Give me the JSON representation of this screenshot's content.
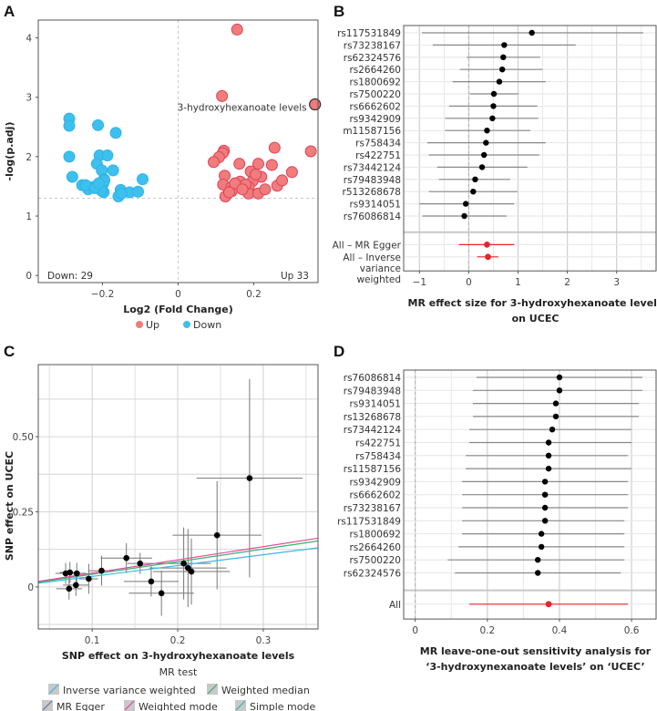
{
  "chart_data": [
    {
      "panel": "A",
      "type": "scatter",
      "title": "",
      "xlabel": "Log2 (Fold Change)",
      "ylabel": "-log(p.adj)",
      "xlim": [
        -0.37,
        0.37
      ],
      "ylim": [
        -0.12,
        4.3
      ],
      "xticks": [
        -0.2,
        0,
        0.2
      ],
      "xtick_labels": [
        "−0.2",
        "0",
        "0.2"
      ],
      "yticks": [
        0,
        1,
        2,
        3,
        4
      ],
      "threshold_y": 1.3,
      "threshold_x": 0,
      "grid": false,
      "legend": {
        "position": "bottom",
        "entries": [
          {
            "label": "Up",
            "color": "#f07c7c"
          },
          {
            "label": "Down",
            "color": "#3ec0ef"
          }
        ]
      },
      "annotations": {
        "down_count": "Down: 29",
        "up_count": "Up 33",
        "highlight_label": "3-hydroxyhexanoate levels"
      },
      "highlight_point": {
        "x": 0.362,
        "y": 2.88
      },
      "series": [
        {
          "name": "Down",
          "color": "#3ec0ef",
          "edge": "#2fb3e6",
          "points": [
            [
              -0.288,
              2.64
            ],
            [
              -0.288,
              2.52
            ],
            [
              -0.212,
              2.53
            ],
            [
              -0.165,
              2.4
            ],
            [
              -0.288,
              2.0
            ],
            [
              -0.208,
              2.02
            ],
            [
              -0.187,
              2.02
            ],
            [
              -0.215,
              1.88
            ],
            [
              -0.202,
              1.77
            ],
            [
              -0.172,
              1.77
            ],
            [
              -0.28,
              1.66
            ],
            [
              -0.196,
              1.62
            ],
            [
              -0.198,
              1.55
            ],
            [
              -0.254,
              1.52
            ],
            [
              -0.238,
              1.45
            ],
            [
              -0.224,
              1.49
            ],
            [
              -0.202,
              1.47
            ],
            [
              -0.197,
              1.4
            ],
            [
              -0.152,
              1.44
            ],
            [
              -0.128,
              1.4
            ],
            [
              -0.106,
              1.41
            ],
            [
              -0.094,
              1.62
            ],
            [
              -0.158,
              1.33
            ],
            [
              -0.203,
              1.43
            ],
            [
              -0.245,
              1.52
            ],
            [
              -0.22,
              1.47
            ],
            [
              -0.15,
              1.38
            ],
            [
              -0.195,
              1.6
            ],
            [
              -0.21,
              1.55
            ]
          ]
        },
        {
          "name": "Up",
          "color": "#f07c7c",
          "edge": "#e0405a",
          "points": [
            [
              0.156,
              4.14
            ],
            [
              0.116,
              3.02
            ],
            [
              0.362,
              2.88
            ],
            [
              0.121,
              2.1
            ],
            [
              0.118,
              2.06
            ],
            [
              0.108,
              1.99
            ],
            [
              0.094,
              1.91
            ],
            [
              0.255,
              2.15
            ],
            [
              0.351,
              2.09
            ],
            [
              0.162,
              1.88
            ],
            [
              0.212,
              1.88
            ],
            [
              0.248,
              1.86
            ],
            [
              0.192,
              1.75
            ],
            [
              0.301,
              1.74
            ],
            [
              0.22,
              1.66
            ],
            [
              0.123,
              1.68
            ],
            [
              0.164,
              1.58
            ],
            [
              0.197,
              1.59
            ],
            [
              0.119,
              1.53
            ],
            [
              0.141,
              1.49
            ],
            [
              0.142,
              1.42
            ],
            [
              0.262,
              1.51
            ],
            [
              0.187,
              1.49
            ],
            [
              0.125,
              1.33
            ],
            [
              0.186,
              1.38
            ],
            [
              0.212,
              1.38
            ],
            [
              0.178,
              1.53
            ],
            [
              0.205,
              1.7
            ],
            [
              0.15,
              1.55
            ],
            [
              0.23,
              1.45
            ],
            [
              0.17,
              1.45
            ],
            [
              0.135,
              1.4
            ],
            [
              0.275,
              1.6
            ]
          ]
        }
      ]
    },
    {
      "panel": "B",
      "type": "forest",
      "xlabel": "MR effect size for 3-hydroxyhexanoate levels on UCEC",
      "xlabel_lines": [
        "MR effect size for 3-hydroxyhexanoate levels",
        "on UCEC"
      ],
      "xlim": [
        -1.32,
        3.8
      ],
      "xticks": [
        -1,
        0,
        1,
        2,
        3
      ],
      "xtick_labels": [
        "−1",
        "0",
        "1",
        "2",
        "3"
      ],
      "grid": true,
      "snps": [
        {
          "label": "rs117531849",
          "effect": 1.28,
          "lo": -0.95,
          "hi": 3.54
        },
        {
          "label": "rs73238167",
          "effect": 0.72,
          "lo": -0.73,
          "hi": 2.17
        },
        {
          "label": "rs62324576",
          "effect": 0.7,
          "lo": -0.04,
          "hi": 1.45
        },
        {
          "label": "rs2664260",
          "effect": 0.68,
          "lo": -0.18,
          "hi": 1.5
        },
        {
          "label": "rs1800692",
          "effect": 0.62,
          "lo": -0.33,
          "hi": 1.56
        },
        {
          "label": "rs7500220",
          "effect": 0.51,
          "lo": 0.02,
          "hi": 1.01
        },
        {
          "label": "rs6662602",
          "effect": 0.5,
          "lo": -0.4,
          "hi": 1.39
        },
        {
          "label": "rs9342909",
          "effect": 0.48,
          "lo": -0.48,
          "hi": 1.41
        },
        {
          "label": "m11587156",
          "effect": 0.37,
          "lo": -0.48,
          "hi": 1.25
        },
        {
          "label": "rs758434",
          "effect": 0.35,
          "lo": -0.84,
          "hi": 1.56
        },
        {
          "label": "rs422751",
          "effect": 0.31,
          "lo": -0.81,
          "hi": 1.43
        },
        {
          "label": "rs73442124",
          "effect": 0.27,
          "lo": -0.64,
          "hi": 1.19
        },
        {
          "label": "rs79483948",
          "effect": 0.13,
          "lo": -0.61,
          "hi": 0.84
        },
        {
          "label": "r513268678",
          "effect": 0.09,
          "lo": -0.81,
          "hi": 0.99
        },
        {
          "label": "rs9314051",
          "effect": -0.06,
          "lo": -1.0,
          "hi": 0.92
        },
        {
          "label": "rs76086814",
          "effect": -0.09,
          "lo": -0.94,
          "hi": 0.77
        }
      ],
      "summary": [
        {
          "label_lines": [
            "All – MR Egger"
          ],
          "effect": 0.37,
          "lo": -0.2,
          "hi": 0.92
        },
        {
          "label_lines": [
            "All – Inverse",
            "variance",
            "weighted"
          ],
          "effect": 0.39,
          "lo": 0.17,
          "hi": 0.6
        }
      ]
    },
    {
      "panel": "C",
      "type": "scatter",
      "xlabel": "SNP effect on 3-hydroxyhexanoate levels",
      "ylabel": "SNP effect on UCEC",
      "xlim": [
        0.037,
        0.364
      ],
      "ylim": [
        -0.14,
        0.74
      ],
      "xticks": [
        0.1,
        0.2,
        0.3
      ],
      "xtick_labels": [
        "0.1",
        "0.2",
        "0.3"
      ],
      "yticks": [
        0,
        0.25,
        0.5
      ],
      "ytick_labels": [
        "0",
        "0.25",
        "0.50"
      ],
      "grid": true,
      "points": [
        {
          "x": 0.069,
          "y": 0.045,
          "xse": 0.012,
          "yse": 0.035
        },
        {
          "x": 0.074,
          "y": 0.048,
          "xse": 0.012,
          "yse": 0.035
        },
        {
          "x": 0.082,
          "y": 0.045,
          "xse": 0.011,
          "yse": 0.035
        },
        {
          "x": 0.073,
          "y": -0.006,
          "xse": 0.015,
          "yse": 0.036
        },
        {
          "x": 0.081,
          "y": 0.006,
          "xse": 0.015,
          "yse": 0.036
        },
        {
          "x": 0.096,
          "y": 0.027,
          "xse": 0.011,
          "yse": 0.05
        },
        {
          "x": 0.111,
          "y": 0.054,
          "xse": 0.015,
          "yse": 0.05
        },
        {
          "x": 0.14,
          "y": 0.096,
          "xse": 0.03,
          "yse": 0.05
        },
        {
          "x": 0.156,
          "y": 0.078,
          "xse": 0.015,
          "yse": 0.035
        },
        {
          "x": 0.169,
          "y": 0.018,
          "xse": 0.032,
          "yse": 0.05
        },
        {
          "x": 0.181,
          "y": -0.021,
          "xse": 0.038,
          "yse": 0.075
        },
        {
          "x": 0.207,
          "y": 0.078,
          "xse": 0.032,
          "yse": 0.12
        },
        {
          "x": 0.212,
          "y": 0.063,
          "xse": 0.045,
          "yse": 0.13
        },
        {
          "x": 0.216,
          "y": 0.051,
          "xse": 0.045,
          "yse": 0.11
        },
        {
          "x": 0.246,
          "y": 0.172,
          "xse": 0.052,
          "yse": 0.18
        },
        {
          "x": 0.284,
          "y": 0.362,
          "xse": 0.062,
          "yse": 0.33
        }
      ],
      "lines": [
        {
          "name": "Inverse variance weighted",
          "color": "#3fb4e8",
          "slope": 0.36,
          "intercept": -0.001
        },
        {
          "name": "MR Egger",
          "color": "#6a6fb0",
          "slope": 0.0,
          "intercept": null
        },
        {
          "name": "Weighted median",
          "color": "#39b06e",
          "slope": 0.42,
          "intercept": 0.0
        },
        {
          "name": "Weighted mode",
          "color": "#e0499a",
          "slope": 0.44,
          "intercept": 0.002
        },
        {
          "name": "Simple mode",
          "color": "#2fb8b0",
          "slope": 0.0,
          "intercept": null
        }
      ],
      "legend": {
        "title": "MR test",
        "position": "bottom",
        "entries": [
          {
            "label": "Inverse variance weighted",
            "color": "#3fb4e8"
          },
          {
            "label": "Weighted median",
            "color": "#39b06e"
          },
          {
            "label": "MR Egger",
            "color": "#6a6fb0"
          },
          {
            "label": "Weighted mode",
            "color": "#e0499a"
          },
          {
            "label": "Simple mode",
            "color": "#2fb8b0"
          }
        ]
      }
    },
    {
      "panel": "D",
      "type": "forest",
      "xlabel_lines": [
        "MR leave-one-out sensitivity analysis for",
        "‘3-hydroxynexanoate levels’ on ‘UCEC’"
      ],
      "xlim": [
        -0.032,
        0.668
      ],
      "xticks": [
        0,
        0.2,
        0.4,
        0.6
      ],
      "xtick_labels": [
        "0",
        "0.2",
        "0.4",
        "0.6"
      ],
      "grid": true,
      "snps": [
        {
          "label": "rs76086814",
          "effect": 0.4,
          "lo": 0.17,
          "hi": 0.63
        },
        {
          "label": "rs79483948",
          "effect": 0.4,
          "lo": 0.16,
          "hi": 0.63
        },
        {
          "label": "rs9314051",
          "effect": 0.39,
          "lo": 0.16,
          "hi": 0.62
        },
        {
          "label": "rs13268678",
          "effect": 0.39,
          "lo": 0.16,
          "hi": 0.62
        },
        {
          "label": "rs73442124",
          "effect": 0.38,
          "lo": 0.15,
          "hi": 0.6
        },
        {
          "label": "rs422751",
          "effect": 0.37,
          "lo": 0.15,
          "hi": 0.6
        },
        {
          "label": "rs758434",
          "effect": 0.37,
          "lo": 0.14,
          "hi": 0.59
        },
        {
          "label": "rs11587156",
          "effect": 0.37,
          "lo": 0.14,
          "hi": 0.6
        },
        {
          "label": "rs9342909",
          "effect": 0.36,
          "lo": 0.13,
          "hi": 0.59
        },
        {
          "label": "rs6662602",
          "effect": 0.36,
          "lo": 0.13,
          "hi": 0.59
        },
        {
          "label": "rs73238167",
          "effect": 0.36,
          "lo": 0.13,
          "hi": 0.59
        },
        {
          "label": "rs117531849",
          "effect": 0.36,
          "lo": 0.13,
          "hi": 0.58
        },
        {
          "label": "rs1800692",
          "effect": 0.35,
          "lo": 0.13,
          "hi": 0.58
        },
        {
          "label": "rs2664260",
          "effect": 0.35,
          "lo": 0.12,
          "hi": 0.58
        },
        {
          "label": "rs7500220",
          "effect": 0.34,
          "lo": 0.09,
          "hi": 0.58
        },
        {
          "label": "rs62324576",
          "effect": 0.34,
          "lo": 0.11,
          "hi": 0.57
        }
      ],
      "summary": [
        {
          "label_lines": [
            "All"
          ],
          "effect": 0.37,
          "lo": 0.15,
          "hi": 0.59
        }
      ]
    }
  ],
  "panels": {
    "a": {
      "letter": "A"
    },
    "b": {
      "letter": "B"
    },
    "c": {
      "letter": "C"
    },
    "d": {
      "letter": "D"
    }
  },
  "colors": {
    "up": "#f07c7c",
    "down": "#3ec0ef",
    "summary": "#e8242c",
    "point": "#000000"
  }
}
